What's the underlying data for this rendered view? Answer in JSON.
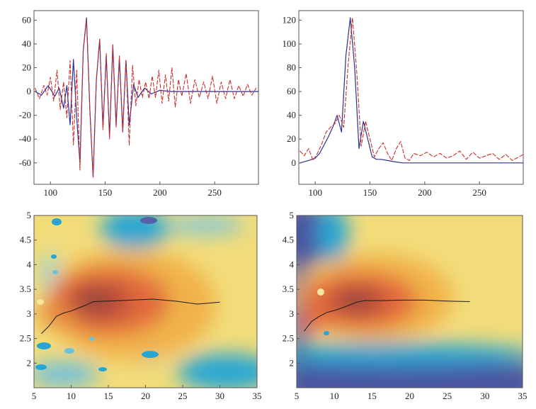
{
  "colors": {
    "red_series": "#c8312b",
    "blue_series": "#2c2f8f",
    "ridge_line": "#1a1a1a",
    "background_deep": "#4a55a0",
    "background_cyan": "#27a6d4",
    "colormap": [
      "#4a55a0",
      "#2ea7d8",
      "#9fd4e6",
      "#f2e49a",
      "#f3ce52",
      "#ef9f3f",
      "#df5a3a",
      "#b24a3a",
      "#8e4a3d"
    ]
  },
  "chart_data": [
    {
      "id": "top-left",
      "type": "line",
      "title": "",
      "xlabel": "",
      "ylabel": "",
      "xlim": [
        85,
        290
      ],
      "ylim": [
        -78,
        68
      ],
      "xticks": [
        100,
        150,
        200,
        250
      ],
      "yticks": [
        60,
        40,
        20,
        0,
        -20,
        -40,
        -60
      ],
      "series": [
        {
          "name": "red",
          "style": "dashed",
          "x": [
            86,
            90,
            94,
            97,
            100,
            103,
            106,
            109,
            112,
            115,
            118,
            121,
            124,
            127,
            130,
            133,
            136,
            139,
            142,
            145,
            148,
            151,
            154,
            157,
            160,
            163,
            166,
            169,
            172,
            175,
            178,
            181,
            184,
            187,
            190,
            193,
            196,
            199,
            202,
            205,
            208,
            211,
            214,
            217,
            220,
            224,
            228,
            232,
            236,
            240,
            244,
            248,
            252,
            256,
            260,
            264,
            268,
            272,
            276,
            280,
            284,
            288
          ],
          "y": [
            3,
            -6,
            5,
            -3,
            12,
            -8,
            18,
            -15,
            8,
            -22,
            26,
            -45,
            18,
            -66,
            35,
            60,
            -15,
            -72,
            10,
            44,
            -32,
            32,
            -40,
            40,
            -30,
            30,
            -35,
            27,
            -45,
            22,
            -12,
            10,
            -5,
            8,
            -6,
            13,
            -5,
            18,
            -10,
            14,
            -8,
            20,
            -13,
            10,
            -4,
            15,
            -10,
            10,
            -5,
            8,
            -6,
            13,
            -10,
            8,
            -6,
            10,
            -6,
            5,
            -4,
            6,
            -3,
            3
          ]
        },
        {
          "name": "blue",
          "style": "solid",
          "x": [
            86,
            92,
            98,
            104,
            108,
            112,
            115,
            118,
            121,
            124,
            127,
            130,
            133,
            136,
            139,
            142,
            145,
            148,
            151,
            154,
            157,
            160,
            163,
            166,
            169,
            172,
            176,
            180,
            186,
            192,
            200,
            210,
            220,
            290
          ],
          "y": [
            0,
            -3,
            5,
            -4,
            3,
            -14,
            5,
            -28,
            27,
            -22,
            -60,
            35,
            62,
            -15,
            -72,
            10,
            44,
            -30,
            30,
            -38,
            38,
            -28,
            28,
            -32,
            26,
            -28,
            6,
            -5,
            3,
            -2,
            1,
            0,
            0,
            0
          ]
        }
      ]
    },
    {
      "id": "top-right",
      "type": "line",
      "title": "",
      "xlabel": "",
      "ylabel": "",
      "xlim": [
        85,
        290
      ],
      "ylim": [
        -18,
        128
      ],
      "xticks": [
        100,
        150,
        200,
        250
      ],
      "yticks": [
        120,
        100,
        80,
        60,
        40,
        20,
        0
      ],
      "series": [
        {
          "name": "red",
          "style": "dashed",
          "x": [
            86,
            90,
            94,
            98,
            102,
            106,
            110,
            114,
            118,
            122,
            126,
            130,
            134,
            138,
            142,
            146,
            150,
            154,
            158,
            162,
            166,
            170,
            174,
            178,
            182,
            186,
            190,
            196,
            202,
            208,
            214,
            220,
            226,
            232,
            238,
            244,
            250,
            256,
            262,
            268,
            274,
            280,
            286,
            290
          ],
          "y": [
            10,
            6,
            12,
            2,
            8,
            16,
            26,
            30,
            33,
            40,
            30,
            82,
            122,
            75,
            14,
            35,
            20,
            5,
            12,
            17,
            8,
            2,
            12,
            18,
            4,
            2,
            8,
            6,
            9,
            5,
            8,
            4,
            6,
            10,
            3,
            9,
            4,
            6,
            8,
            3,
            7,
            2,
            5,
            7
          ]
        },
        {
          "name": "blue",
          "style": "solid",
          "x": [
            86,
            94,
            100,
            104,
            108,
            112,
            116,
            120,
            124,
            128,
            132,
            136,
            140,
            144,
            148,
            152,
            156,
            160,
            166,
            172,
            180,
            190,
            290
          ],
          "y": [
            0,
            2,
            4,
            8,
            15,
            22,
            30,
            40,
            26,
            90,
            122,
            80,
            12,
            35,
            20,
            5,
            3,
            3,
            2,
            1,
            0,
            0,
            0
          ]
        }
      ]
    },
    {
      "id": "bottom-left",
      "type": "heatmap",
      "title": "",
      "xlabel": "",
      "ylabel": "",
      "xlim": [
        5,
        35
      ],
      "ylim": [
        1.5,
        5
      ],
      "xticks": [
        5,
        10,
        15,
        20,
        25,
        30,
        35
      ],
      "yticks": [
        5,
        4.5,
        4,
        3.5,
        3,
        2.5,
        2
      ],
      "ytick_labels": [
        "5",
        "4.5",
        "4",
        "3.5",
        "3",
        "2.5",
        "2"
      ],
      "peak": {
        "x": 14,
        "y": 3.3
      },
      "ridge": {
        "x": [
          6,
          7,
          8,
          9,
          10,
          11,
          12,
          13,
          15,
          18,
          21,
          24,
          27,
          30
        ],
        "y": [
          2.6,
          2.75,
          2.95,
          3.02,
          3.06,
          3.12,
          3.18,
          3.25,
          3.26,
          3.28,
          3.3,
          3.26,
          3.2,
          3.24
        ]
      }
    },
    {
      "id": "bottom-right",
      "type": "heatmap",
      "title": "",
      "xlabel": "",
      "ylabel": "",
      "xlim": [
        5,
        35
      ],
      "ylim": [
        1.5,
        5
      ],
      "xticks": [
        5,
        10,
        15,
        20,
        25,
        30,
        35
      ],
      "yticks": [
        5,
        4.5,
        4,
        3.5,
        3,
        2.5,
        2
      ],
      "ytick_labels": [
        "5",
        "4.5",
        "4",
        "3.5",
        "3",
        "2.5",
        "2"
      ],
      "peak": {
        "x": 13,
        "y": 3.3
      },
      "ridge": {
        "x": [
          6,
          6.5,
          7,
          8,
          9,
          10,
          11,
          12,
          13,
          14,
          16,
          19,
          22,
          25,
          28
        ],
        "y": [
          2.65,
          2.75,
          2.85,
          2.95,
          3.03,
          3.07,
          3.12,
          3.18,
          3.24,
          3.27,
          3.27,
          3.28,
          3.28,
          3.26,
          3.25
        ]
      }
    }
  ]
}
